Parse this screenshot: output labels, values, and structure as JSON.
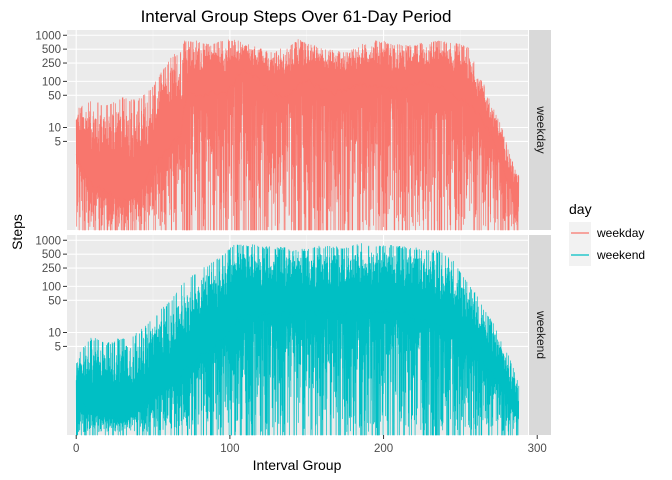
{
  "chart_data": {
    "type": "line",
    "title": "Interval Group Steps Over 61-Day Period",
    "xlabel": "Interval Group",
    "ylabel": "Steps",
    "y_scale": "log10",
    "xlim": [
      -6,
      294
    ],
    "ylim": [
      0.06,
      1300
    ],
    "x_ticks": [
      0,
      100,
      200,
      300
    ],
    "y_ticks": [
      5,
      10,
      50,
      100,
      250,
      500,
      1000
    ],
    "grid": true,
    "legend": {
      "title": "day",
      "position": "right",
      "entries": [
        "weekday",
        "weekend"
      ]
    },
    "facet_strip_position": "right",
    "colors": {
      "weekday": "#F8766D",
      "weekend": "#00BFC4",
      "panel": "#EBEBEB",
      "strip": "#D9D9D9"
    },
    "panels": [
      {
        "name": "weekday",
        "strip_label": "weekday",
        "series_name": "weekday",
        "mean_profile": [
          [
            0,
            2.3
          ],
          [
            10,
            0.6
          ],
          [
            20,
            0.4
          ],
          [
            30,
            0.25
          ],
          [
            40,
            0.35
          ],
          [
            50,
            1.5
          ],
          [
            58,
            3.0
          ],
          [
            63,
            5.2
          ],
          [
            68,
            6.0
          ],
          [
            70,
            25
          ],
          [
            73,
            52
          ],
          [
            78,
            50
          ],
          [
            84,
            52
          ],
          [
            90,
            58
          ],
          [
            98,
            55
          ],
          [
            104,
            110
          ],
          [
            108,
            190
          ],
          [
            112,
            150
          ],
          [
            120,
            105
          ],
          [
            128,
            52
          ],
          [
            136,
            46
          ],
          [
            144,
            80
          ],
          [
            152,
            100
          ],
          [
            160,
            70
          ],
          [
            168,
            55
          ],
          [
            176,
            70
          ],
          [
            186,
            82
          ],
          [
            196,
            80
          ],
          [
            206,
            72
          ],
          [
            214,
            68
          ],
          [
            220,
            95
          ],
          [
            228,
            92
          ],
          [
            236,
            78
          ],
          [
            244,
            52
          ],
          [
            250,
            40
          ],
          [
            256,
            32
          ],
          [
            262,
            18
          ],
          [
            266,
            11
          ],
          [
            270,
            7
          ],
          [
            274,
            3
          ],
          [
            278,
            1.2
          ],
          [
            282,
            0.6
          ],
          [
            287,
            0.2
          ]
        ],
        "max_profile": [
          [
            0,
            25
          ],
          [
            10,
            40
          ],
          [
            20,
            30
          ],
          [
            30,
            45
          ],
          [
            40,
            40
          ],
          [
            50,
            80
          ],
          [
            58,
            220
          ],
          [
            63,
            380
          ],
          [
            68,
            460
          ],
          [
            70,
            790
          ],
          [
            78,
            780
          ],
          [
            86,
            640
          ],
          [
            96,
            820
          ],
          [
            104,
            790
          ],
          [
            112,
            640
          ],
          [
            120,
            520
          ],
          [
            128,
            430
          ],
          [
            136,
            560
          ],
          [
            144,
            830
          ],
          [
            152,
            640
          ],
          [
            160,
            550
          ],
          [
            168,
            470
          ],
          [
            176,
            430
          ],
          [
            186,
            690
          ],
          [
            196,
            800
          ],
          [
            206,
            700
          ],
          [
            214,
            600
          ],
          [
            220,
            640
          ],
          [
            228,
            720
          ],
          [
            236,
            760
          ],
          [
            244,
            700
          ],
          [
            250,
            650
          ],
          [
            256,
            560
          ],
          [
            262,
            150
          ],
          [
            266,
            80
          ],
          [
            270,
            35
          ],
          [
            274,
            18
          ],
          [
            278,
            8
          ],
          [
            282,
            3
          ],
          [
            287,
            1
          ]
        ]
      },
      {
        "name": "weekend",
        "strip_label": "weekend",
        "series_name": "weekend",
        "mean_profile": [
          [
            0,
            0.4
          ],
          [
            10,
            0.2
          ],
          [
            20,
            0.15
          ],
          [
            30,
            0.12
          ],
          [
            40,
            0.2
          ],
          [
            50,
            0.4
          ],
          [
            58,
            0.6
          ],
          [
            63,
            0.8
          ],
          [
            68,
            1.1
          ],
          [
            70,
            1.6
          ],
          [
            78,
            2.5
          ],
          [
            86,
            4
          ],
          [
            96,
            8
          ],
          [
            104,
            18
          ],
          [
            112,
            22
          ],
          [
            120,
            24
          ],
          [
            128,
            25
          ],
          [
            136,
            24
          ],
          [
            144,
            26
          ],
          [
            152,
            28
          ],
          [
            160,
            27
          ],
          [
            168,
            26
          ],
          [
            176,
            25
          ],
          [
            186,
            27
          ],
          [
            196,
            30
          ],
          [
            206,
            28
          ],
          [
            214,
            25
          ],
          [
            220,
            20
          ],
          [
            228,
            18
          ],
          [
            236,
            14
          ],
          [
            244,
            10
          ],
          [
            250,
            7
          ],
          [
            256,
            5
          ],
          [
            262,
            3
          ],
          [
            266,
            2
          ],
          [
            270,
            1.4
          ],
          [
            274,
            1
          ],
          [
            278,
            0.6
          ],
          [
            282,
            0.3
          ],
          [
            287,
            0.15
          ]
        ],
        "max_profile": [
          [
            0,
            3
          ],
          [
            10,
            8
          ],
          [
            20,
            6
          ],
          [
            30,
            8
          ],
          [
            40,
            10
          ],
          [
            50,
            20
          ],
          [
            58,
            40
          ],
          [
            63,
            60
          ],
          [
            68,
            100
          ],
          [
            70,
            120
          ],
          [
            78,
            200
          ],
          [
            86,
            310
          ],
          [
            96,
            500
          ],
          [
            100,
            700
          ],
          [
            104,
            860
          ],
          [
            112,
            840
          ],
          [
            120,
            760
          ],
          [
            128,
            720
          ],
          [
            136,
            720
          ],
          [
            144,
            630
          ],
          [
            152,
            700
          ],
          [
            160,
            780
          ],
          [
            168,
            720
          ],
          [
            176,
            760
          ],
          [
            186,
            860
          ],
          [
            196,
            830
          ],
          [
            206,
            780
          ],
          [
            214,
            720
          ],
          [
            220,
            700
          ],
          [
            228,
            620
          ],
          [
            236,
            600
          ],
          [
            244,
            420
          ],
          [
            250,
            200
          ],
          [
            256,
            110
          ],
          [
            262,
            60
          ],
          [
            266,
            30
          ],
          [
            270,
            20
          ],
          [
            274,
            10
          ],
          [
            278,
            5
          ],
          [
            282,
            3
          ],
          [
            287,
            1
          ]
        ]
      }
    ]
  }
}
